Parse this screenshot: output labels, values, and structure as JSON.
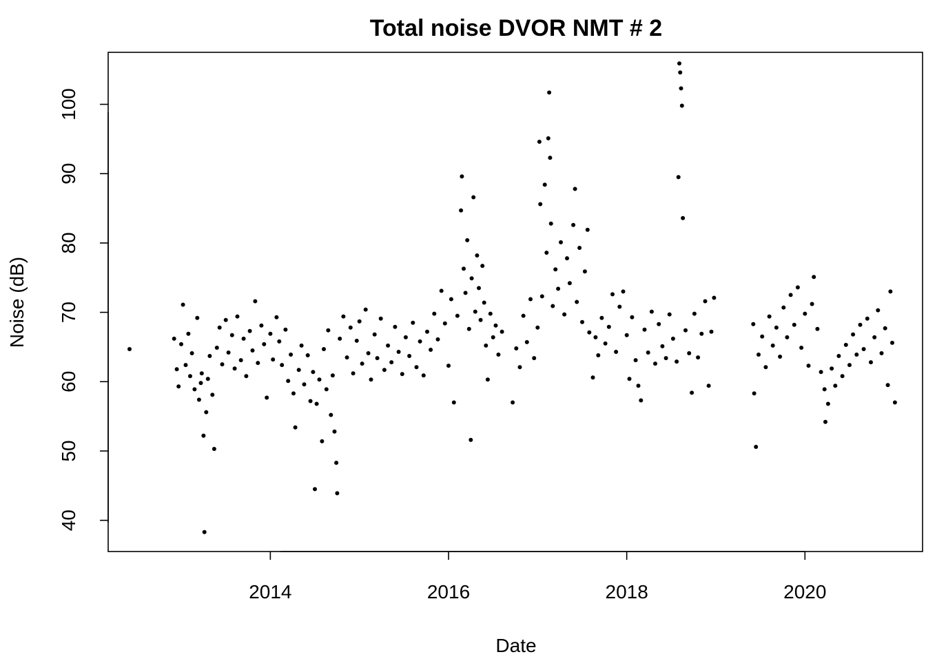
{
  "chart_data": {
    "type": "scatter",
    "title": "Total noise DVOR NMT # 2",
    "xlabel": "Date",
    "ylabel": "Noise (dB)",
    "xlim": [
      2012.18,
      2021.32
    ],
    "ylim": [
      35.5,
      107.5
    ],
    "x_ticks": [
      {
        "value": 2014,
        "label": "2014"
      },
      {
        "value": 2016,
        "label": "2016"
      },
      {
        "value": 2018,
        "label": "2018"
      },
      {
        "value": 2020,
        "label": "2020"
      }
    ],
    "y_ticks": [
      {
        "value": 40,
        "label": "40"
      },
      {
        "value": 50,
        "label": "50"
      },
      {
        "value": 60,
        "label": "60"
      },
      {
        "value": 70,
        "label": "70"
      },
      {
        "value": 80,
        "label": "80"
      },
      {
        "value": 90,
        "label": "90"
      },
      {
        "value": 100,
        "label": "100"
      }
    ],
    "grid": false,
    "legend": "none",
    "point_color": "#000000",
    "series": [
      {
        "points": [
          [
            2012.42,
            64.7
          ],
          [
            2012.92,
            66.2
          ],
          [
            2012.95,
            61.8
          ],
          [
            2012.97,
            59.3
          ],
          [
            2013.0,
            65.4
          ],
          [
            2013.02,
            71.1
          ],
          [
            2013.05,
            62.4
          ],
          [
            2013.08,
            66.9
          ],
          [
            2013.1,
            60.8
          ],
          [
            2013.12,
            64.1
          ],
          [
            2013.15,
            58.9
          ],
          [
            2013.18,
            69.2
          ],
          [
            2013.2,
            57.4
          ],
          [
            2013.22,
            59.8
          ],
          [
            2013.23,
            61.2
          ],
          [
            2013.25,
            52.2
          ],
          [
            2013.26,
            38.3
          ],
          [
            2013.28,
            55.6
          ],
          [
            2013.3,
            60.4
          ],
          [
            2013.32,
            63.7
          ],
          [
            2013.35,
            58.1
          ],
          [
            2013.37,
            50.3
          ],
          [
            2013.4,
            64.9
          ],
          [
            2013.43,
            67.8
          ],
          [
            2013.46,
            62.5
          ],
          [
            2013.5,
            68.9
          ],
          [
            2013.53,
            64.2
          ],
          [
            2013.57,
            66.7
          ],
          [
            2013.6,
            61.9
          ],
          [
            2013.63,
            69.4
          ],
          [
            2013.67,
            63.1
          ],
          [
            2013.7,
            66.2
          ],
          [
            2013.73,
            60.8
          ],
          [
            2013.77,
            67.3
          ],
          [
            2013.8,
            64.5
          ],
          [
            2013.83,
            71.6
          ],
          [
            2013.86,
            62.7
          ],
          [
            2013.9,
            68.1
          ],
          [
            2013.93,
            65.4
          ],
          [
            2013.96,
            57.7
          ],
          [
            2014.0,
            66.9
          ],
          [
            2014.03,
            63.2
          ],
          [
            2014.07,
            69.3
          ],
          [
            2014.1,
            65.8
          ],
          [
            2014.13,
            62.4
          ],
          [
            2014.17,
            67.5
          ],
          [
            2014.2,
            60.1
          ],
          [
            2014.23,
            63.9
          ],
          [
            2014.26,
            58.3
          ],
          [
            2014.28,
            53.4
          ],
          [
            2014.32,
            61.7
          ],
          [
            2014.35,
            65.2
          ],
          [
            2014.38,
            59.6
          ],
          [
            2014.42,
            63.8
          ],
          [
            2014.45,
            57.2
          ],
          [
            2014.48,
            61.4
          ],
          [
            2014.5,
            44.5
          ],
          [
            2014.52,
            56.8
          ],
          [
            2014.55,
            60.3
          ],
          [
            2014.58,
            51.4
          ],
          [
            2014.6,
            64.7
          ],
          [
            2014.63,
            58.9
          ],
          [
            2014.65,
            67.4
          ],
          [
            2014.68,
            55.2
          ],
          [
            2014.7,
            60.9
          ],
          [
            2014.72,
            52.8
          ],
          [
            2014.74,
            48.3
          ],
          [
            2014.75,
            43.9
          ],
          [
            2014.78,
            66.2
          ],
          [
            2014.82,
            69.4
          ],
          [
            2014.86,
            63.5
          ],
          [
            2014.9,
            67.8
          ],
          [
            2014.93,
            61.2
          ],
          [
            2014.97,
            65.9
          ],
          [
            2015.0,
            68.7
          ],
          [
            2015.03,
            62.6
          ],
          [
            2015.07,
            70.4
          ],
          [
            2015.1,
            64.1
          ],
          [
            2015.13,
            60.3
          ],
          [
            2015.17,
            66.8
          ],
          [
            2015.2,
            63.4
          ],
          [
            2015.24,
            69.1
          ],
          [
            2015.28,
            61.7
          ],
          [
            2015.32,
            65.2
          ],
          [
            2015.36,
            62.8
          ],
          [
            2015.4,
            67.9
          ],
          [
            2015.44,
            64.3
          ],
          [
            2015.48,
            61.1
          ],
          [
            2015.52,
            66.4
          ],
          [
            2015.56,
            63.7
          ],
          [
            2015.6,
            68.5
          ],
          [
            2015.64,
            62.1
          ],
          [
            2015.68,
            65.8
          ],
          [
            2015.72,
            60.9
          ],
          [
            2015.76,
            67.2
          ],
          [
            2015.8,
            64.6
          ],
          [
            2015.84,
            69.8
          ],
          [
            2015.88,
            66.1
          ],
          [
            2015.92,
            73.1
          ],
          [
            2015.96,
            68.4
          ],
          [
            2016.0,
            62.3
          ],
          [
            2016.03,
            71.9
          ],
          [
            2016.06,
            57.0
          ],
          [
            2016.1,
            69.5
          ],
          [
            2016.14,
            84.7
          ],
          [
            2016.15,
            89.6
          ],
          [
            2016.17,
            76.3
          ],
          [
            2016.19,
            72.8
          ],
          [
            2016.21,
            80.4
          ],
          [
            2016.23,
            67.6
          ],
          [
            2016.25,
            51.6
          ],
          [
            2016.26,
            74.9
          ],
          [
            2016.28,
            86.6
          ],
          [
            2016.3,
            70.1
          ],
          [
            2016.32,
            78.2
          ],
          [
            2016.34,
            73.5
          ],
          [
            2016.36,
            68.9
          ],
          [
            2016.38,
            76.7
          ],
          [
            2016.4,
            71.4
          ],
          [
            2016.42,
            65.2
          ],
          [
            2016.44,
            60.3
          ],
          [
            2016.47,
            69.8
          ],
          [
            2016.5,
            66.4
          ],
          [
            2016.53,
            68.1
          ],
          [
            2016.56,
            63.9
          ],
          [
            2016.6,
            67.2
          ],
          [
            2016.72,
            57.0
          ],
          [
            2016.76,
            64.8
          ],
          [
            2016.8,
            62.1
          ],
          [
            2016.84,
            69.5
          ],
          [
            2016.88,
            65.7
          ],
          [
            2016.92,
            71.9
          ],
          [
            2016.96,
            63.4
          ],
          [
            2017.0,
            67.8
          ],
          [
            2017.02,
            94.6
          ],
          [
            2017.03,
            85.6
          ],
          [
            2017.05,
            72.3
          ],
          [
            2017.08,
            88.4
          ],
          [
            2017.1,
            78.6
          ],
          [
            2017.12,
            95.1
          ],
          [
            2017.13,
            101.7
          ],
          [
            2017.14,
            92.3
          ],
          [
            2017.15,
            82.8
          ],
          [
            2017.17,
            70.9
          ],
          [
            2017.2,
            76.2
          ],
          [
            2017.23,
            73.4
          ],
          [
            2017.26,
            80.1
          ],
          [
            2017.3,
            69.7
          ],
          [
            2017.33,
            77.8
          ],
          [
            2017.36,
            74.2
          ],
          [
            2017.4,
            82.6
          ],
          [
            2017.42,
            87.8
          ],
          [
            2017.44,
            71.5
          ],
          [
            2017.47,
            79.3
          ],
          [
            2017.5,
            68.6
          ],
          [
            2017.53,
            75.9
          ],
          [
            2017.56,
            81.9
          ],
          [
            2017.58,
            67.1
          ],
          [
            2017.62,
            60.6
          ],
          [
            2017.65,
            66.4
          ],
          [
            2017.68,
            63.8
          ],
          [
            2017.72,
            69.2
          ],
          [
            2017.76,
            65.5
          ],
          [
            2017.8,
            67.9
          ],
          [
            2017.84,
            72.6
          ],
          [
            2017.88,
            64.3
          ],
          [
            2017.92,
            70.8
          ],
          [
            2017.96,
            73.0
          ],
          [
            2018.0,
            66.7
          ],
          [
            2018.03,
            60.4
          ],
          [
            2018.06,
            69.3
          ],
          [
            2018.1,
            63.1
          ],
          [
            2018.13,
            59.4
          ],
          [
            2018.16,
            57.3
          ],
          [
            2018.2,
            67.5
          ],
          [
            2018.24,
            64.2
          ],
          [
            2018.28,
            70.1
          ],
          [
            2018.32,
            62.6
          ],
          [
            2018.36,
            68.3
          ],
          [
            2018.4,
            65.1
          ],
          [
            2018.44,
            63.4
          ],
          [
            2018.48,
            69.7
          ],
          [
            2018.52,
            66.2
          ],
          [
            2018.56,
            62.9
          ],
          [
            2018.58,
            89.5
          ],
          [
            2018.59,
            105.9
          ],
          [
            2018.6,
            104.6
          ],
          [
            2018.61,
            102.3
          ],
          [
            2018.62,
            99.8
          ],
          [
            2018.63,
            83.6
          ],
          [
            2018.66,
            67.4
          ],
          [
            2018.7,
            64.1
          ],
          [
            2018.73,
            58.4
          ],
          [
            2018.76,
            69.8
          ],
          [
            2018.8,
            63.5
          ],
          [
            2018.84,
            66.9
          ],
          [
            2018.88,
            71.6
          ],
          [
            2018.92,
            59.4
          ],
          [
            2018.95,
            67.2
          ],
          [
            2018.98,
            72.1
          ],
          [
            2019.42,
            68.3
          ],
          [
            2019.43,
            58.3
          ],
          [
            2019.45,
            50.6
          ],
          [
            2019.48,
            63.9
          ],
          [
            2019.52,
            66.5
          ],
          [
            2019.56,
            62.1
          ],
          [
            2019.6,
            69.4
          ],
          [
            2019.64,
            65.2
          ],
          [
            2019.68,
            67.8
          ],
          [
            2019.72,
            63.6
          ],
          [
            2019.76,
            70.7
          ],
          [
            2019.8,
            66.4
          ],
          [
            2019.84,
            72.5
          ],
          [
            2019.88,
            68.2
          ],
          [
            2019.92,
            73.6
          ],
          [
            2019.96,
            64.9
          ],
          [
            2020.0,
            69.8
          ],
          [
            2020.04,
            62.3
          ],
          [
            2020.08,
            71.2
          ],
          [
            2020.1,
            75.1
          ],
          [
            2020.14,
            67.6
          ],
          [
            2020.18,
            61.4
          ],
          [
            2020.22,
            58.9
          ],
          [
            2020.23,
            54.2
          ],
          [
            2020.26,
            56.8
          ],
          [
            2020.3,
            61.9
          ],
          [
            2020.34,
            59.4
          ],
          [
            2020.38,
            63.7
          ],
          [
            2020.42,
            60.8
          ],
          [
            2020.46,
            65.3
          ],
          [
            2020.5,
            62.4
          ],
          [
            2020.54,
            66.8
          ],
          [
            2020.58,
            63.9
          ],
          [
            2020.62,
            68.2
          ],
          [
            2020.66,
            64.7
          ],
          [
            2020.7,
            69.1
          ],
          [
            2020.74,
            62.8
          ],
          [
            2020.78,
            66.4
          ],
          [
            2020.82,
            70.3
          ],
          [
            2020.86,
            64.1
          ],
          [
            2020.9,
            67.7
          ],
          [
            2020.93,
            59.5
          ],
          [
            2020.96,
            73.0
          ],
          [
            2020.98,
            65.6
          ],
          [
            2021.01,
            57.0
          ]
        ]
      }
    ]
  }
}
